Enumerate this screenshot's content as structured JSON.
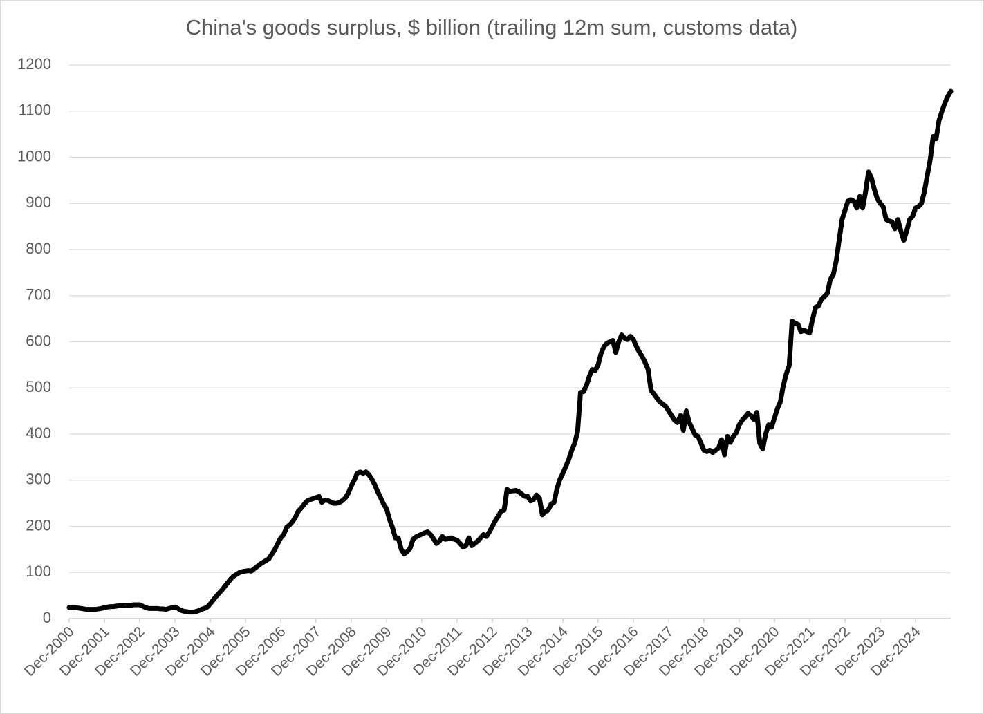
{
  "chart_data": {
    "type": "line",
    "title": "China's goods surplus, $ billion (trailing 12m sum, customs data)",
    "categories": [
      "Dec-2000",
      null,
      null,
      null,
      null,
      null,
      null,
      null,
      null,
      null,
      null,
      null,
      "Dec-2001",
      null,
      null,
      null,
      null,
      null,
      null,
      null,
      null,
      null,
      null,
      null,
      "Dec-2002",
      null,
      null,
      null,
      null,
      null,
      null,
      null,
      null,
      null,
      null,
      null,
      "Dec-2003",
      null,
      null,
      null,
      null,
      null,
      null,
      null,
      null,
      null,
      null,
      null,
      "Dec-2004",
      null,
      null,
      null,
      null,
      null,
      null,
      null,
      null,
      null,
      null,
      null,
      "Dec-2005",
      null,
      null,
      null,
      null,
      null,
      null,
      null,
      null,
      null,
      null,
      null,
      "Dec-2006",
      null,
      null,
      null,
      null,
      null,
      null,
      null,
      null,
      null,
      null,
      null,
      "Dec-2007",
      null,
      null,
      null,
      null,
      null,
      null,
      null,
      null,
      null,
      null,
      null,
      "Dec-2008",
      null,
      null,
      null,
      null,
      null,
      null,
      null,
      null,
      null,
      null,
      null,
      "Dec-2009",
      null,
      null,
      null,
      null,
      null,
      null,
      null,
      null,
      null,
      null,
      null,
      "Dec-2010",
      null,
      null,
      null,
      null,
      null,
      null,
      null,
      null,
      null,
      null,
      null,
      "Dec-2011",
      null,
      null,
      null,
      null,
      null,
      null,
      null,
      null,
      null,
      null,
      null,
      "Dec-2012",
      null,
      null,
      null,
      null,
      null,
      null,
      null,
      null,
      null,
      null,
      null,
      "Dec-2013",
      null,
      null,
      null,
      null,
      null,
      null,
      null,
      null,
      null,
      null,
      null,
      "Dec-2014",
      null,
      null,
      null,
      null,
      null,
      null,
      null,
      null,
      null,
      null,
      null,
      "Dec-2015",
      null,
      null,
      null,
      null,
      null,
      null,
      null,
      null,
      null,
      null,
      null,
      "Dec-2016",
      null,
      null,
      null,
      null,
      null,
      null,
      null,
      null,
      null,
      null,
      null,
      "Dec-2017",
      null,
      null,
      null,
      null,
      null,
      null,
      null,
      null,
      null,
      null,
      null,
      "Dec-2018",
      null,
      null,
      null,
      null,
      null,
      null,
      null,
      null,
      null,
      null,
      null,
      "Dec-2019",
      null,
      null,
      null,
      null,
      null,
      null,
      null,
      null,
      null,
      null,
      null,
      "Dec-2020",
      null,
      null,
      null,
      null,
      null,
      null,
      null,
      null,
      null,
      null,
      null,
      "Dec-2021",
      null,
      null,
      null,
      null,
      null,
      null,
      null,
      null,
      null,
      null,
      null,
      "Dec-2022",
      null,
      null,
      null,
      null,
      null,
      null,
      null,
      null,
      null,
      null,
      null,
      "Dec-2023",
      null,
      null,
      null,
      null,
      null,
      null,
      null,
      null,
      null,
      null,
      null,
      "Dec-2024",
      null,
      null,
      null,
      null,
      null,
      null,
      null,
      null,
      null,
      null,
      null,
      null
    ],
    "values": [
      24,
      24,
      24,
      23,
      22,
      21,
      20,
      20,
      20,
      20,
      21,
      22,
      24,
      25,
      26,
      26,
      27,
      28,
      28,
      29,
      29,
      29,
      30,
      30,
      30,
      27,
      24,
      22,
      22,
      22,
      22,
      21,
      21,
      20,
      22,
      24,
      25,
      22,
      18,
      16,
      15,
      14,
      14,
      15,
      17,
      20,
      22,
      25,
      32,
      40,
      48,
      55,
      62,
      70,
      78,
      86,
      92,
      96,
      100,
      102,
      103,
      104,
      103,
      108,
      113,
      118,
      122,
      126,
      130,
      140,
      150,
      163,
      175,
      182,
      198,
      203,
      210,
      220,
      233,
      240,
      248,
      255,
      258,
      260,
      262,
      265,
      252,
      257,
      256,
      253,
      250,
      250,
      252,
      256,
      262,
      272,
      288,
      300,
      315,
      318,
      315,
      318,
      312,
      302,
      290,
      275,
      262,
      248,
      238,
      215,
      198,
      175,
      175,
      150,
      140,
      145,
      152,
      172,
      177,
      180,
      183,
      186,
      188,
      182,
      173,
      163,
      168,
      178,
      172,
      173,
      175,
      172,
      170,
      163,
      155,
      158,
      175,
      158,
      163,
      168,
      175,
      182,
      178,
      188,
      200,
      212,
      222,
      233,
      235,
      280,
      276,
      277,
      278,
      275,
      270,
      265,
      265,
      255,
      258,
      268,
      262,
      225,
      232,
      235,
      248,
      252,
      282,
      302,
      315,
      330,
      345,
      365,
      380,
      405,
      490,
      492,
      505,
      525,
      540,
      538,
      550,
      575,
      590,
      597,
      600,
      603,
      577,
      600,
      615,
      608,
      605,
      612,
      605,
      590,
      578,
      568,
      555,
      540,
      495,
      487,
      478,
      470,
      465,
      460,
      450,
      440,
      430,
      425,
      440,
      408,
      450,
      425,
      412,
      398,
      395,
      380,
      365,
      362,
      365,
      360,
      365,
      370,
      388,
      355,
      395,
      382,
      395,
      403,
      420,
      430,
      437,
      445,
      440,
      432,
      447,
      380,
      368,
      400,
      420,
      415,
      435,
      455,
      470,
      505,
      530,
      548,
      645,
      640,
      638,
      622,
      625,
      622,
      620,
      650,
      675,
      678,
      692,
      698,
      705,
      735,
      745,
      775,
      820,
      865,
      885,
      905,
      908,
      905,
      890,
      915,
      890,
      925,
      968,
      955,
      930,
      910,
      900,
      893,
      865,
      862,
      860,
      845,
      865,
      840,
      820,
      840,
      865,
      872,
      890,
      893,
      900,
      925,
      960,
      995,
      1045,
      1040,
      1080,
      1100,
      1118,
      1132,
      1143
    ],
    "color": "#000000",
    "ylim": [
      0,
      1200
    ],
    "yticks": [
      0,
      100,
      200,
      300,
      400,
      500,
      600,
      700,
      800,
      900,
      1000,
      1100,
      1200
    ],
    "grid": true
  }
}
